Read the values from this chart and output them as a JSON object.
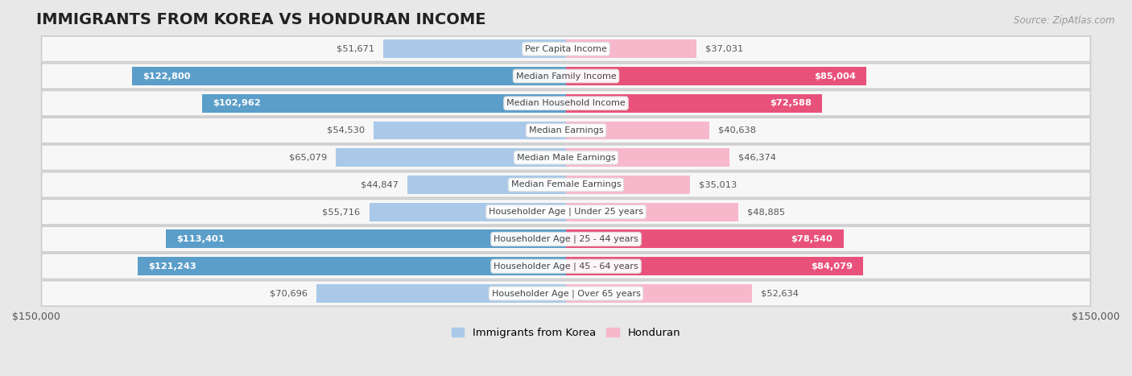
{
  "title": "IMMIGRANTS FROM KOREA VS HONDURAN INCOME",
  "source": "Source: ZipAtlas.com",
  "categories": [
    "Per Capita Income",
    "Median Family Income",
    "Median Household Income",
    "Median Earnings",
    "Median Male Earnings",
    "Median Female Earnings",
    "Householder Age | Under 25 years",
    "Householder Age | 25 - 44 years",
    "Householder Age | 45 - 64 years",
    "Householder Age | Over 65 years"
  ],
  "korea_values": [
    51671,
    122800,
    102962,
    54530,
    65079,
    44847,
    55716,
    113401,
    121243,
    70696
  ],
  "honduran_values": [
    37031,
    85004,
    72588,
    40638,
    46374,
    35013,
    48885,
    78540,
    84079,
    52634
  ],
  "korea_labels": [
    "$51,671",
    "$122,800",
    "$102,962",
    "$54,530",
    "$65,079",
    "$44,847",
    "$55,716",
    "$113,401",
    "$121,243",
    "$70,696"
  ],
  "honduran_labels": [
    "$37,031",
    "$85,004",
    "$72,588",
    "$40,638",
    "$46,374",
    "$35,013",
    "$48,885",
    "$78,540",
    "$84,079",
    "$52,634"
  ],
  "korea_color_light": "#aac9e8",
  "korea_color_dark": "#5b9ec9",
  "honduran_color_light": "#f7b8cc",
  "honduran_color_dark": "#e8527a",
  "background_color": "#e8e8e8",
  "row_bg_color": "#f7f7f7",
  "xlim": 150000,
  "legend_korea": "Immigrants from Korea",
  "legend_honduran": "Honduran",
  "title_fontsize": 14,
  "bar_height": 0.68,
  "korea_inside_threshold": 80000,
  "honduran_inside_threshold": 60000
}
